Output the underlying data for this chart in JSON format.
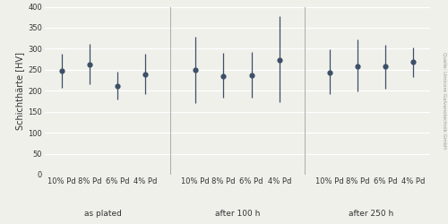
{
  "ylabel": "Schichthärte [HV]",
  "ylim": [
    0,
    400
  ],
  "yticks": [
    0,
    50,
    100,
    150,
    200,
    250,
    300,
    350,
    400
  ],
  "groups": [
    "as plated",
    "after 100 h",
    "after 250 h"
  ],
  "group_labels": [
    "10% Pd",
    "8% Pd",
    "6% Pd",
    "4% Pd"
  ],
  "dot_color": "#3d5068",
  "error_color": "#3d5068",
  "bg_color": "#f0f0eb",
  "grid_color": "#ffffff",
  "sep_color": "#aaaaaa",
  "data": {
    "as plated": {
      "means": [
        247,
        263,
        211,
        240
      ],
      "lows": [
        207,
        215,
        180,
        192
      ],
      "highs": [
        288,
        312,
        246,
        289
      ]
    },
    "after 100 h": {
      "means": [
        249,
        234,
        236,
        273
      ],
      "lows": [
        170,
        183,
        184,
        173
      ],
      "highs": [
        328,
        291,
        292,
        378
      ]
    },
    "after 250 h": {
      "means": [
        244,
        258,
        259,
        268
      ],
      "lows": [
        192,
        199,
        205,
        233
      ],
      "highs": [
        298,
        323,
        310,
        303
      ]
    }
  },
  "source_text": "Quelle: Umicore Galvanotechnik GmbH",
  "tick_fontsize": 6.0,
  "label_fontsize": 7.0,
  "group_fontsize": 6.5,
  "source_fontsize": 4.0
}
